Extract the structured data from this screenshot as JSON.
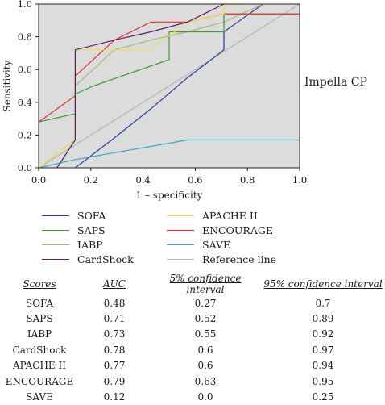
{
  "chart_data": {
    "type": "line",
    "side_title": "Impella CP",
    "xlabel": "1 – specificity",
    "ylabel": "Sensitivity",
    "xlim": [
      0,
      1
    ],
    "ylim": [
      0,
      1
    ],
    "x_ticks": [
      "0.0",
      "0.2",
      "0.4",
      "0.6",
      "0.8",
      "1.0"
    ],
    "y_ticks": [
      "0.0",
      "0.2",
      "0.4",
      "0.6",
      "0.8",
      "1.0"
    ],
    "grid": false,
    "plot_background": "#dcdcdc",
    "series": [
      {
        "name": "SOFA",
        "color": "#2b3f9a",
        "points": [
          [
            0.14,
            0
          ],
          [
            0.28,
            0.17
          ],
          [
            0.43,
            0.36
          ],
          [
            0.57,
            0.55
          ],
          [
            0.71,
            0.72
          ],
          [
            0.71,
            0.83
          ],
          [
            0.86,
            1.0
          ]
        ]
      },
      {
        "name": "SAPS",
        "color": "#3a9a3a",
        "points": [
          [
            0,
            0.28
          ],
          [
            0.14,
            0.33
          ],
          [
            0.14,
            0.45
          ],
          [
            0.21,
            0.5
          ],
          [
            0.5,
            0.66
          ],
          [
            0.5,
            0.83
          ],
          [
            0.71,
            0.83
          ],
          [
            0.71,
            0.94
          ],
          [
            1.0,
            0.94
          ]
        ]
      },
      {
        "name": "IABP",
        "color": "#a8b878",
        "points": [
          [
            0,
            0
          ],
          [
            0.14,
            0.17
          ],
          [
            0.14,
            0.5
          ],
          [
            0.29,
            0.72
          ],
          [
            0.43,
            0.78
          ],
          [
            0.57,
            0.83
          ],
          [
            0.71,
            0.89
          ],
          [
            0.86,
            1.0
          ]
        ]
      },
      {
        "name": "CardShock",
        "color": "#5a1f5f",
        "points": [
          [
            0.07,
            0
          ],
          [
            0.14,
            0.17
          ],
          [
            0.14,
            0.72
          ],
          [
            0.29,
            0.78
          ],
          [
            0.43,
            0.83
          ],
          [
            0.57,
            0.89
          ],
          [
            0.71,
            1.0
          ]
        ]
      },
      {
        "name": "APACHE II",
        "color": "#f0e050",
        "points": [
          [
            0,
            0
          ],
          [
            0.14,
            0.17
          ],
          [
            0.14,
            0.72
          ],
          [
            0.43,
            0.72
          ],
          [
            0.57,
            0.89
          ],
          [
            0.71,
            0.94
          ],
          [
            0.71,
            1.0
          ],
          [
            0.8,
            1.0
          ]
        ]
      },
      {
        "name": "ENCOURAGE",
        "color": "#e23030",
        "points": [
          [
            0,
            0.28
          ],
          [
            0.14,
            0.44
          ],
          [
            0.14,
            0.56
          ],
          [
            0.29,
            0.78
          ],
          [
            0.43,
            0.89
          ],
          [
            0.57,
            0.89
          ],
          [
            0.71,
            0.94
          ],
          [
            1.0,
            0.94
          ]
        ]
      },
      {
        "name": "SAVE",
        "color": "#3aa6c4",
        "points": [
          [
            0,
            0
          ],
          [
            0.14,
            0.05
          ],
          [
            0.57,
            0.17
          ],
          [
            1.0,
            0.17
          ]
        ]
      },
      {
        "name": "Reference line",
        "color": "#b4b4b4",
        "points": [
          [
            0,
            0
          ],
          [
            1,
            1
          ]
        ]
      }
    ]
  },
  "table": {
    "headers": [
      "Scores",
      "AUC",
      "5% confidence interval",
      "95% confidence interval"
    ],
    "rows": [
      [
        "SOFA",
        "0.48",
        "0.27",
        "0.7"
      ],
      [
        "SAPS",
        "0.71",
        "0.52",
        "0.89"
      ],
      [
        "IABP",
        "0.73",
        "0.55",
        "0.92"
      ],
      [
        "CardShock",
        "0.78",
        "0.6",
        "0.97"
      ],
      [
        "APACHE II",
        "0.77",
        "0.6",
        "0.94"
      ],
      [
        "ENCOURAGE",
        "0.79",
        "0.63",
        "0.95"
      ],
      [
        "SAVE",
        "0.12",
        "0.0",
        "0.25"
      ]
    ]
  }
}
